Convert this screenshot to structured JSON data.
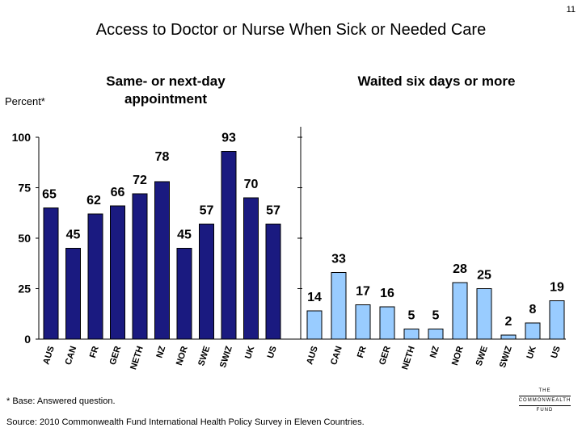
{
  "page_number": "11",
  "title": "Access to Doctor or Nurse When Sick or Needed Care",
  "footnote": "* Base: Answered question.",
  "source": "Source: 2010 Commonwealth Fund International Health Policy Survey in Eleven Countries.",
  "logo": {
    "line1": "THE",
    "line2": "COMMONWEALTH",
    "line3": "FUND"
  },
  "colors": {
    "left_bars": "#1a1a80",
    "right_bars": "#99ccff",
    "bar_outline": "#000000"
  },
  "chart_data": [
    {
      "type": "bar",
      "title": "Same- or next-day appointment",
      "ylabel": "Percent*",
      "xlabel": "",
      "ylim": [
        0,
        100
      ],
      "yticks": [
        0,
        25,
        50,
        75,
        100
      ],
      "categories": [
        "AUS",
        "CAN",
        "FR",
        "GER",
        "NETH",
        "NZ",
        "NOR",
        "SWE",
        "SWIZ",
        "UK",
        "US"
      ],
      "values": [
        65,
        45,
        62,
        66,
        72,
        78,
        45,
        57,
        93,
        70,
        57
      ],
      "color": "#1a1a80"
    },
    {
      "type": "bar",
      "title": "Waited six days or more",
      "xlabel": "",
      "ylabel": "",
      "ylim": [
        0,
        100
      ],
      "categories": [
        "AUS",
        "CAN",
        "FR",
        "GER",
        "NETH",
        "NZ",
        "NOR",
        "SWE",
        "SWIZ",
        "UK",
        "US"
      ],
      "values": [
        14,
        33,
        17,
        16,
        5,
        5,
        28,
        25,
        2,
        8,
        19
      ],
      "color": "#99ccff"
    }
  ]
}
